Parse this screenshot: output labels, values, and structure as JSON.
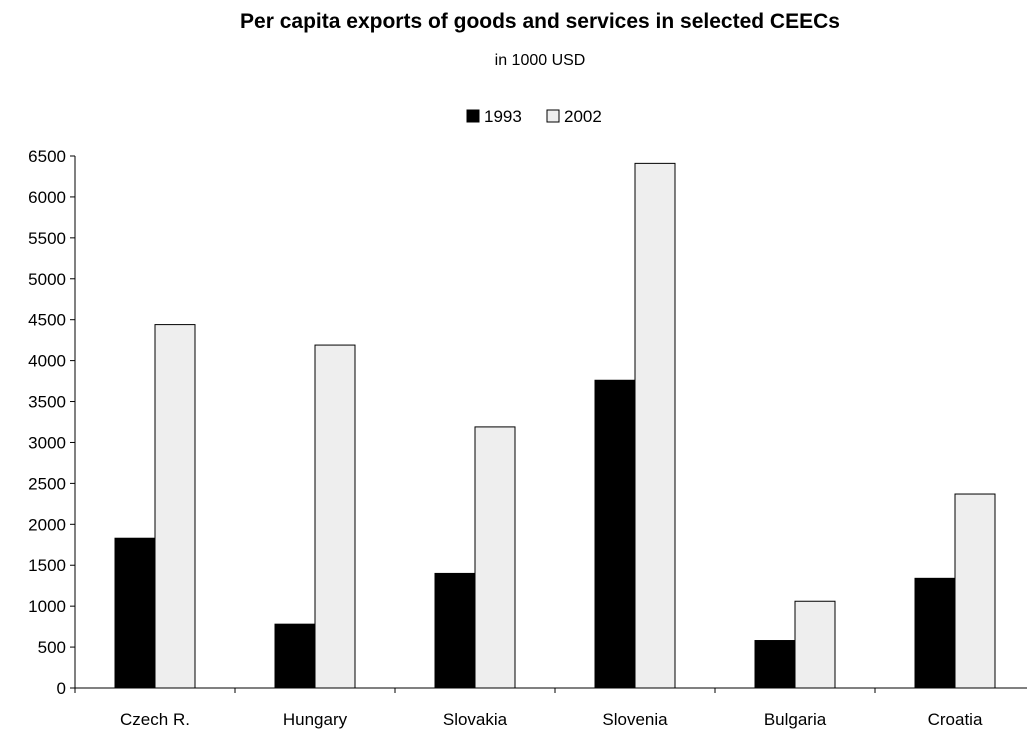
{
  "chart_data": {
    "type": "bar",
    "title": "Per capita exports of goods and services in selected CEECs",
    "subtitle": "in 1000 USD",
    "categories": [
      "Czech R.",
      "Hungary",
      "Slovakia",
      "Slovenia",
      "Bulgaria",
      "Croatia"
    ],
    "series": [
      {
        "name": "1993",
        "values": [
          1830,
          780,
          1400,
          3760,
          580,
          1340
        ],
        "color": "#000000"
      },
      {
        "name": "2002",
        "values": [
          4440,
          4190,
          3190,
          6410,
          1060,
          2370
        ],
        "color": "#eeeeee"
      }
    ],
    "ylim": [
      0,
      6500
    ],
    "yticks": [
      0,
      500,
      1000,
      1500,
      2000,
      2500,
      3000,
      3500,
      4000,
      4500,
      5000,
      5500,
      6000,
      6500
    ],
    "grid": false,
    "legend_position": "top"
  }
}
